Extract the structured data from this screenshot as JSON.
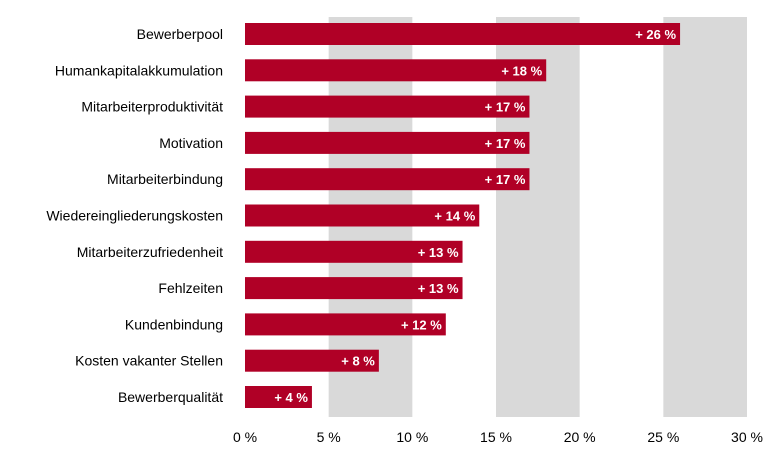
{
  "chart_data": {
    "type": "bar",
    "orientation": "horizontal",
    "categories": [
      "Bewerberpool",
      "Humankapitalakkumulation",
      "Mitarbeiterproduktivität",
      "Motivation",
      "Mitarbeiterbindung",
      "Wiedereingliederungskosten",
      "Mitarbeiterzufriedenheit",
      "Fehlzeiten",
      "Kundenbindung",
      "Kosten vakanter Stellen",
      "Bewerberqualität"
    ],
    "values": [
      26,
      18,
      17,
      17,
      17,
      14,
      13,
      13,
      12,
      8,
      4
    ],
    "data_labels": [
      "+ 26 %",
      "+ 18 %",
      "+ 17 %",
      "+ 17 %",
      "+ 17 %",
      "+ 14 %",
      "+ 13 %",
      "+ 13 %",
      "+ 12 %",
      "+ 8 %",
      "+ 4 %"
    ],
    "xlim": [
      0,
      30
    ],
    "xticks": [
      0,
      5,
      10,
      15,
      20,
      25,
      30
    ],
    "xtick_labels": [
      "0 %",
      "5 %",
      "10 %",
      "15 %",
      "20 %",
      "25 %",
      "30 %"
    ],
    "title": "",
    "xlabel": "",
    "ylabel": "",
    "grid": "alternating vertical bands",
    "legend": "none",
    "colors": {
      "bar": "#B00026",
      "band": "#D9D9D9",
      "label_text": "#ffffff",
      "axis_text": "#000000"
    }
  }
}
